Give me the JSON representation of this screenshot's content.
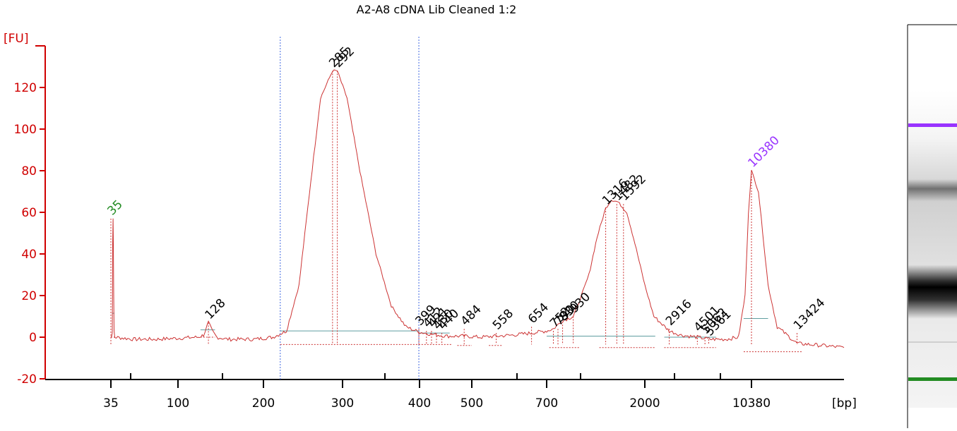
{
  "chart_data": {
    "type": "line",
    "title": "A2-A8 cDNA Lib Cleaned 1:2",
    "ylabel": "[FU]",
    "xlabel": "[bp]",
    "ylim": [
      -20,
      135
    ],
    "yticks": [
      -20,
      0,
      20,
      40,
      60,
      80,
      100,
      120
    ],
    "x_tick_labels": [
      "35",
      "100",
      "200",
      "300",
      "400",
      "500",
      "700",
      "2000",
      "10380"
    ],
    "grid": false,
    "series": [
      {
        "color": "#cc3333",
        "points": [
          [
            35,
            0
          ],
          [
            35.5,
            0.5
          ],
          [
            35.8,
            3
          ],
          [
            35.9,
            20
          ],
          [
            36,
            45
          ],
          [
            36.2,
            57
          ],
          [
            36.4,
            45
          ],
          [
            36.6,
            20
          ],
          [
            36.8,
            3
          ],
          [
            37.2,
            0
          ],
          [
            50,
            -1
          ],
          [
            70,
            -1
          ],
          [
            100,
            -0.5
          ],
          [
            118,
            0
          ],
          [
            123,
            1
          ],
          [
            128,
            7
          ],
          [
            132,
            3
          ],
          [
            137,
            0
          ],
          [
            150,
            -1
          ],
          [
            185,
            -1
          ],
          [
            210,
            0
          ],
          [
            225,
            3
          ],
          [
            240,
            25
          ],
          [
            255,
            75
          ],
          [
            268,
            115
          ],
          [
            285,
            128
          ],
          [
            292,
            128
          ],
          [
            305,
            115
          ],
          [
            320,
            80
          ],
          [
            340,
            40
          ],
          [
            360,
            15
          ],
          [
            380,
            5
          ],
          [
            399,
            2.5
          ],
          [
            420,
            1.5
          ],
          [
            450,
            0.5
          ],
          [
            484,
            0.5
          ],
          [
            520,
            0
          ],
          [
            558,
            0.5
          ],
          [
            600,
            1
          ],
          [
            654,
            2
          ],
          [
            700,
            3
          ],
          [
            752,
            4
          ],
          [
            790,
            6
          ],
          [
            830,
            8
          ],
          [
            930,
            10
          ],
          [
            1000,
            18
          ],
          [
            1100,
            30
          ],
          [
            1200,
            48
          ],
          [
            1316,
            62
          ],
          [
            1400,
            66
          ],
          [
            1500,
            65
          ],
          [
            1650,
            60
          ],
          [
            1800,
            45
          ],
          [
            2000,
            25
          ],
          [
            2300,
            10
          ],
          [
            2916,
            3
          ],
          [
            3500,
            1
          ],
          [
            4500,
            0
          ],
          [
            5500,
            -1
          ],
          [
            7000,
            -1
          ],
          [
            8500,
            0
          ],
          [
            9400,
            20
          ],
          [
            9900,
            60
          ],
          [
            10380,
            80
          ],
          [
            10800,
            70
          ],
          [
            11400,
            25
          ],
          [
            12000,
            5
          ],
          [
            13424,
            -3
          ],
          [
            15500,
            -4
          ],
          [
            17500,
            -5
          ]
        ]
      }
    ],
    "peak_labels": [
      {
        "x": 35,
        "y": 57,
        "label": "35",
        "color": "#228b22"
      },
      {
        "x": 128,
        "y": 7,
        "label": "128"
      },
      {
        "x": 285,
        "y": 128,
        "label": "285"
      },
      {
        "x": 292,
        "y": 128,
        "label": "292"
      },
      {
        "x": 399,
        "y": 4,
        "label": "399"
      },
      {
        "x": 412,
        "y": 3,
        "label": "412"
      },
      {
        "x": 421,
        "y": 3,
        "label": "421"
      },
      {
        "x": 430,
        "y": 2,
        "label": "430"
      },
      {
        "x": 440,
        "y": 2,
        "label": "440"
      },
      {
        "x": 484,
        "y": 4,
        "label": "484"
      },
      {
        "x": 558,
        "y": 2,
        "label": "558"
      },
      {
        "x": 654,
        "y": 5,
        "label": "654"
      },
      {
        "x": 752,
        "y": 3,
        "label": "752"
      },
      {
        "x": 790,
        "y": 4,
        "label": "790"
      },
      {
        "x": 830,
        "y": 6,
        "label": "830"
      },
      {
        "x": 930,
        "y": 10,
        "label": "930"
      },
      {
        "x": 1316,
        "y": 62,
        "label": "1316"
      },
      {
        "x": 1482,
        "y": 64,
        "label": "1482"
      },
      {
        "x": 1592,
        "y": 64,
        "label": "1592"
      },
      {
        "x": 2916,
        "y": 4,
        "label": "2916"
      },
      {
        "x": 4501,
        "y": 1,
        "label": "4501"
      },
      {
        "x": 5062,
        "y": 0,
        "label": "5062"
      },
      {
        "x": 5361,
        "y": -1,
        "label": "5361"
      },
      {
        "x": 10380,
        "y": 80,
        "label": "10380",
        "color": "#9933ff"
      },
      {
        "x": 13424,
        "y": 2,
        "label": "13424"
      }
    ],
    "region_markers_bp": [
      218,
      399
    ]
  },
  "colors": {
    "axis": "#d00000",
    "trace": "#cc3333",
    "baseline": "#5f9ea0",
    "region_marker": "#4169e1",
    "lower_marker": "#228b22",
    "upper_marker": "#9933ff"
  }
}
